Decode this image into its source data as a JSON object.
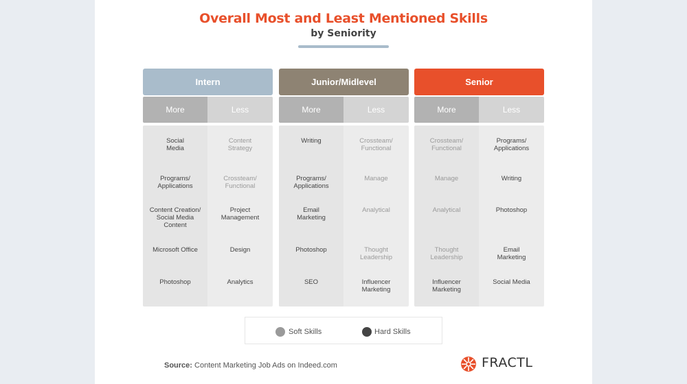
{
  "title": "Overall Most and Least Mentioned Skills",
  "subtitle": "by Seniority",
  "groups": [
    {
      "name": "Intern",
      "color": "#a9bccb",
      "more_label": "More",
      "less_label": "Less",
      "more": [
        {
          "text": "Social\nMedia",
          "type": "hard"
        },
        {
          "text": "Programs/\nApplications",
          "type": "hard"
        },
        {
          "text": "Content Creation/\nSocial Media\nContent",
          "type": "hard"
        },
        {
          "text": "Microsoft Office",
          "type": "hard"
        },
        {
          "text": "Photoshop",
          "type": "hard"
        }
      ],
      "less": [
        {
          "text": "Content\nStrategy",
          "type": "soft"
        },
        {
          "text": "Crossteam/\nFunctional",
          "type": "soft"
        },
        {
          "text": "Project\nManagement",
          "type": "hard"
        },
        {
          "text": "Design",
          "type": "hard"
        },
        {
          "text": "Analytics",
          "type": "hard"
        }
      ]
    },
    {
      "name": "Junior/Midlevel",
      "color": "#8e8373",
      "more_label": "More",
      "less_label": "Less",
      "more": [
        {
          "text": "Writing",
          "type": "hard"
        },
        {
          "text": "Programs/\nApplications",
          "type": "hard"
        },
        {
          "text": "Email\nMarketing",
          "type": "hard"
        },
        {
          "text": "Photoshop",
          "type": "hard"
        },
        {
          "text": "SEO",
          "type": "hard"
        }
      ],
      "less": [
        {
          "text": "Crossteam/\nFunctional",
          "type": "soft"
        },
        {
          "text": "Manage",
          "type": "soft"
        },
        {
          "text": "Analytical",
          "type": "soft"
        },
        {
          "text": "Thought\nLeadership",
          "type": "soft"
        },
        {
          "text": "Influencer\nMarketing",
          "type": "hard"
        }
      ]
    },
    {
      "name": "Senior",
      "color": "#e8502b",
      "more_label": "More",
      "less_label": "Less",
      "more": [
        {
          "text": "Crossteam/\nFunctional",
          "type": "soft"
        },
        {
          "text": "Manage",
          "type": "soft"
        },
        {
          "text": "Analytical",
          "type": "soft"
        },
        {
          "text": "Thought\nLeadership",
          "type": "soft"
        },
        {
          "text": "Influencer\nMarketing",
          "type": "hard"
        }
      ],
      "less": [
        {
          "text": "Programs/\nApplications",
          "type": "hard"
        },
        {
          "text": "Writing",
          "type": "hard"
        },
        {
          "text": "Photoshop",
          "type": "hard"
        },
        {
          "text": "Email\nMarketing",
          "type": "hard"
        },
        {
          "text": "Social Media",
          "type": "hard"
        }
      ]
    }
  ],
  "legend": {
    "soft_label": "Soft Skills",
    "soft_color": "#9a9a9a",
    "hard_label": "Hard Skills",
    "hard_color": "#444444"
  },
  "source": {
    "label": "Source:",
    "text": "Content Marketing Job Ads on Indeed.com"
  },
  "logo": {
    "text": "FRACTL",
    "color": "#e8502b",
    "icon": "fractl-sun-icon"
  }
}
